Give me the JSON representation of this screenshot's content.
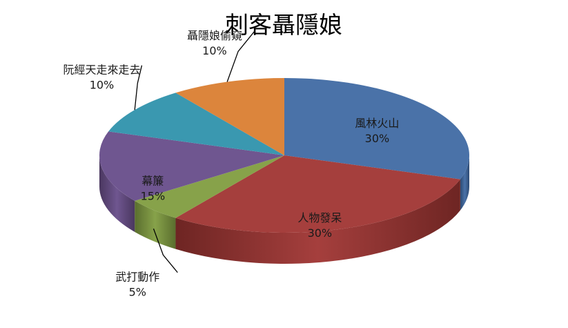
{
  "chart_data": {
    "type": "pie",
    "variant": "3d",
    "title": "刺客聶隱娘",
    "legend": "none",
    "slices": [
      {
        "label": "風林火山",
        "value": 30,
        "value_label": "30%",
        "color": "#4a72a8",
        "side_color": "#2d4a73"
      },
      {
        "label": "人物發呆",
        "value": 30,
        "value_label": "30%",
        "color": "#a53f3d",
        "side_color": "#6e2523"
      },
      {
        "label": "武打動作",
        "value": 5,
        "value_label": "5%",
        "color": "#87a24a",
        "side_color": "#5a6e2e"
      },
      {
        "label": "幕簾",
        "value": 15,
        "value_label": "15%",
        "color": "#6f5690",
        "side_color": "#4a375f"
      },
      {
        "label": "阮經天走來走去",
        "value": 10,
        "value_label": "10%",
        "color": "#3a98b0",
        "side_color": "#236375"
      },
      {
        "label": "聶隱娘偷窺",
        "value": 10,
        "value_label": "10%",
        "color": "#dc853c",
        "side_color": "#a65e22"
      }
    ]
  }
}
